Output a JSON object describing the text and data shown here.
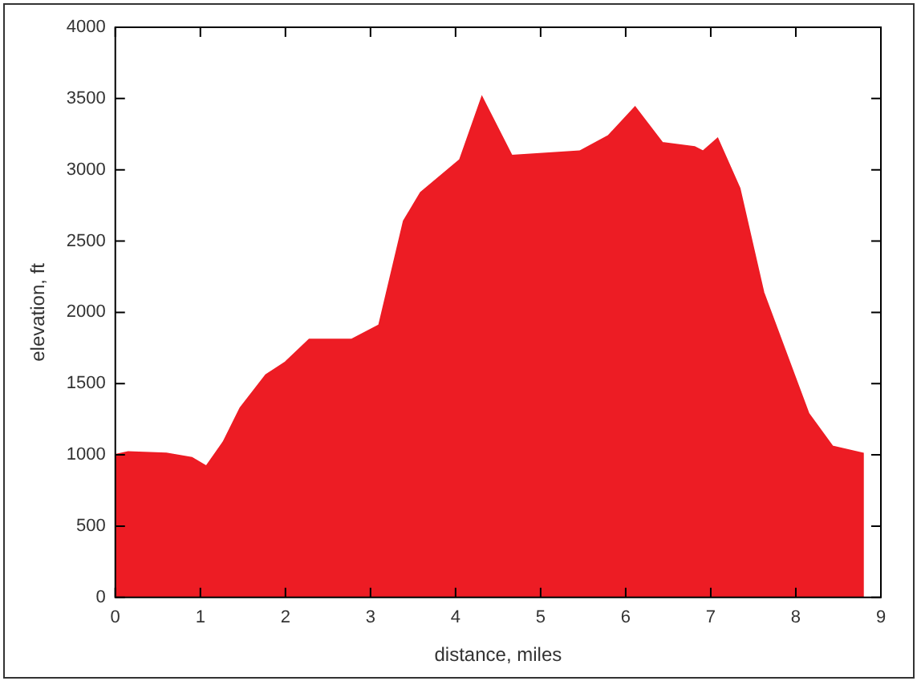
{
  "chart_data": {
    "type": "area",
    "xlabel": "distance, miles",
    "ylabel": "elevation, ft",
    "xlim": [
      0,
      9
    ],
    "ylim": [
      0,
      4000
    ],
    "xticks": [
      0,
      1,
      2,
      3,
      4,
      5,
      6,
      7,
      8,
      9
    ],
    "yticks": [
      0,
      500,
      1000,
      1500,
      2000,
      2500,
      3000,
      3500,
      4000
    ],
    "grid": false,
    "legend": false,
    "series": [
      {
        "color": "#ed1c24",
        "x": [
          0,
          0.15,
          0.6,
          0.9,
          1.07,
          1.27,
          1.47,
          1.77,
          2.0,
          2.28,
          2.78,
          3.1,
          3.39,
          3.59,
          4.05,
          4.31,
          4.66,
          5.46,
          5.8,
          6.11,
          6.43,
          6.81,
          6.91,
          7.08,
          7.34,
          7.62,
          8.15,
          8.43,
          8.79
        ],
        "values": [
          1000,
          1020,
          1010,
          980,
          920,
          1090,
          1330,
          1560,
          1650,
          1810,
          1810,
          1910,
          2640,
          2840,
          3070,
          3510,
          3100,
          3130,
          3240,
          3440,
          3190,
          3160,
          3130,
          3220,
          2870,
          2140,
          1290,
          1060,
          1010
        ]
      }
    ]
  }
}
